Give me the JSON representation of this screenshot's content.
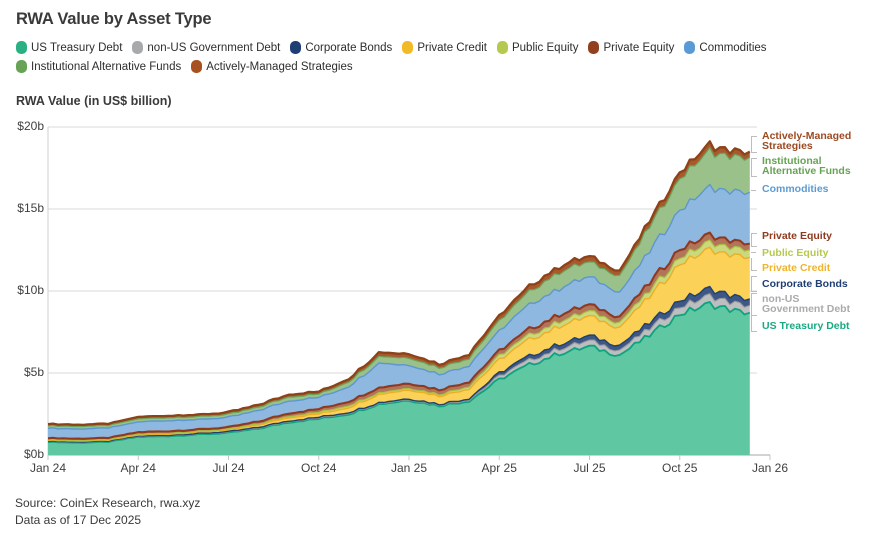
{
  "title": "RWA Value by Asset Type",
  "axis_title": "RWA Value (in US$ billion)",
  "footer": {
    "source": "Source: CoinEx Research, rwa.xyz",
    "as_of": "Data as of 17 Dec 2025"
  },
  "y_axis": {
    "tick_labels": [
      "$0b",
      "$5b",
      "$10b",
      "$15b",
      "$20b"
    ],
    "tick_values": [
      0,
      5,
      10,
      15,
      20
    ]
  },
  "x_axis": {
    "tick_labels": [
      "Jan 24",
      "Apr 24",
      "Jul 24",
      "Oct 24",
      "Jan 25",
      "Apr 25",
      "Jul 25",
      "Oct 25",
      "Jan 26"
    ]
  },
  "right_labels": [
    {
      "lines": [
        "Actively-Managed",
        "Strategies"
      ],
      "color": "#9c4a22"
    },
    {
      "lines": [
        "Institutional",
        "Alternative Funds"
      ],
      "color": "#66a355"
    },
    {
      "lines": [
        "Commodities"
      ],
      "color": "#5b9bd5"
    },
    {
      "lines": [
        "Private Equity"
      ],
      "color": "#8f3a20"
    },
    {
      "lines": [
        "Public Equity"
      ],
      "color": "#b5c94e"
    },
    {
      "lines": [
        "Private Credit"
      ],
      "color": "#f0b32c"
    },
    {
      "lines": [
        "Corporate Bonds"
      ],
      "color": "#1f3e74"
    },
    {
      "lines": [
        "non-US",
        "Government Debt"
      ],
      "color": "#a9abad"
    },
    {
      "lines": [
        "US Treasury Debt"
      ],
      "color": "#1aaa82"
    }
  ],
  "chart_data": {
    "type": "area",
    "stacked": true,
    "title": "RWA Value by Asset Type",
    "ylabel": "RWA Value (in US$ billion)",
    "ylim": [
      0,
      20
    ],
    "grid": true,
    "x": [
      "Jan 24",
      "Feb 24",
      "Mar 24",
      "Apr 24",
      "May 24",
      "Jun 24",
      "Jul 24",
      "Aug 24",
      "Sep 24",
      "Oct 24",
      "Nov 24",
      "Dec 24",
      "Jan 25",
      "Feb 25",
      "Mar 25",
      "Apr 25",
      "May 25",
      "Jun 25",
      "Jul 25",
      "Aug 25",
      "Sep 25",
      "Oct 25",
      "Nov 25",
      "Dec 25"
    ],
    "units": "US$ billion",
    "series": [
      {
        "name": "US Treasury Debt",
        "swatch": "#2bb083",
        "fill": "#5fc7a1",
        "stroke": "#0da37e",
        "values": [
          0.8,
          0.75,
          0.8,
          1.1,
          1.15,
          1.25,
          1.35,
          1.6,
          2.0,
          2.2,
          2.5,
          3.1,
          3.35,
          3.0,
          3.3,
          4.6,
          5.5,
          6.2,
          6.6,
          6.1,
          7.3,
          8.6,
          9.2,
          8.7
        ]
      },
      {
        "name": "non-US Government Debt",
        "swatch": "#a7a9ac",
        "fill": "#bcbec0",
        "stroke": "#96989a",
        "values": [
          0.03,
          0.03,
          0.03,
          0.03,
          0.03,
          0.03,
          0.04,
          0.04,
          0.05,
          0.05,
          0.06,
          0.05,
          0.05,
          0.05,
          0.08,
          0.2,
          0.28,
          0.3,
          0.35,
          0.3,
          0.4,
          0.45,
          0.5,
          0.45
        ]
      },
      {
        "name": "Corporate Bonds",
        "swatch": "#1f3e74",
        "fill": "#3d5787",
        "stroke": "#20406f",
        "values": [
          0.02,
          0.02,
          0.02,
          0.03,
          0.03,
          0.03,
          0.03,
          0.04,
          0.04,
          0.05,
          0.05,
          0.05,
          0.05,
          0.05,
          0.08,
          0.2,
          0.25,
          0.28,
          0.3,
          0.3,
          0.35,
          0.4,
          0.45,
          0.4
        ]
      },
      {
        "name": "Private Credit",
        "swatch": "#f2b928",
        "fill": "#fbd157",
        "stroke": "#ecae27",
        "values": [
          0.05,
          0.05,
          0.05,
          0.06,
          0.07,
          0.08,
          0.1,
          0.15,
          0.2,
          0.2,
          0.3,
          0.5,
          0.55,
          0.5,
          0.6,
          0.8,
          1.0,
          1.1,
          1.2,
          1.1,
          1.6,
          2.2,
          2.35,
          2.5
        ]
      },
      {
        "name": "Public Equity",
        "swatch": "#b5c94e",
        "fill": "#ccd87c",
        "stroke": "#a9bf43",
        "values": [
          0.04,
          0.04,
          0.04,
          0.05,
          0.05,
          0.05,
          0.05,
          0.06,
          0.08,
          0.1,
          0.12,
          0.1,
          0.1,
          0.1,
          0.15,
          0.25,
          0.28,
          0.3,
          0.3,
          0.3,
          0.35,
          0.4,
          0.45,
          0.45
        ]
      },
      {
        "name": "Private Equity",
        "swatch": "#93401f",
        "fill": "#b2755a",
        "stroke": "#8f3a20",
        "values": [
          0.1,
          0.1,
          0.1,
          0.12,
          0.12,
          0.12,
          0.12,
          0.15,
          0.18,
          0.2,
          0.25,
          0.3,
          0.3,
          0.28,
          0.28,
          0.3,
          0.35,
          0.4,
          0.4,
          0.35,
          0.5,
          0.5,
          0.45,
          0.4
        ]
      },
      {
        "name": "Commodities",
        "swatch": "#5b9bd5",
        "fill": "#8fb8e0",
        "stroke": "#5d97cf",
        "values": [
          0.6,
          0.6,
          0.6,
          0.62,
          0.65,
          0.6,
          0.6,
          0.68,
          0.75,
          0.7,
          0.9,
          1.5,
          1.1,
          0.95,
          1.0,
          1.2,
          1.5,
          1.6,
          1.7,
          1.5,
          1.9,
          2.4,
          2.9,
          3.1
        ]
      },
      {
        "name": "Institutional Alternative Funds",
        "swatch": "#66a355",
        "fill": "#99c189",
        "stroke": "#6aa35a",
        "values": [
          0.15,
          0.15,
          0.15,
          0.18,
          0.18,
          0.18,
          0.18,
          0.2,
          0.25,
          0.2,
          0.3,
          0.4,
          0.45,
          0.4,
          0.45,
          0.6,
          0.8,
          1.0,
          0.9,
          1.0,
          1.5,
          1.9,
          2.2,
          2.1
        ]
      },
      {
        "name": "Actively-Managed Strategies",
        "swatch": "#a6511f",
        "fill": "#a85a2e",
        "stroke": "#8d4218",
        "values": [
          0.11,
          0.11,
          0.11,
          0.12,
          0.12,
          0.12,
          0.13,
          0.14,
          0.15,
          0.15,
          0.18,
          0.25,
          0.25,
          0.22,
          0.25,
          0.3,
          0.32,
          0.35,
          0.35,
          0.3,
          0.35,
          0.38,
          0.4,
          0.35
        ]
      }
    ]
  }
}
